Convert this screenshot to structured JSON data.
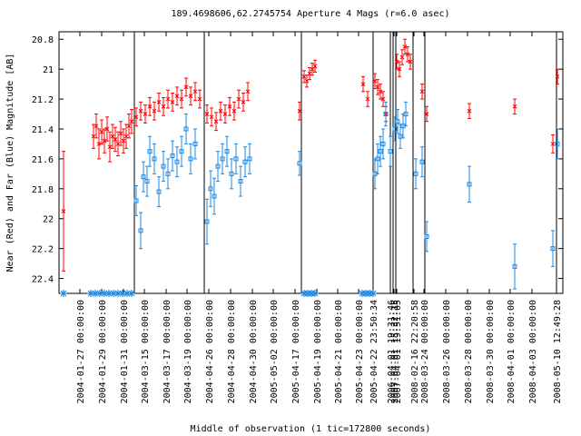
{
  "chart_data": {
    "type": "scatter",
    "title": "189.4698606,62.2745754   Aperture 4 Mags (r=6.0 asec)",
    "y_label": "Near (Red) and Far (Blue) Magnitude [AB]",
    "x_label": "Middle of observation (1 tic=172800 seconds)",
    "ylim": [
      22.5,
      20.75
    ],
    "yticks": [
      20.8,
      21,
      21.2,
      21.4,
      21.6,
      21.8,
      22,
      22.2,
      22.4
    ],
    "xlim": [
      0,
      555
    ],
    "xticks": [
      {
        "value": 23,
        "label": "2004-01-27 00:00:00"
      },
      {
        "value": 47,
        "label": "2004-01-29 00:00:00"
      },
      {
        "value": 71,
        "label": "2004-01-31 00:00:00"
      },
      {
        "value": 94,
        "label": "2004-03-15 00:00:00"
      },
      {
        "value": 118,
        "label": "2004-03-17 00:00:00"
      },
      {
        "value": 141,
        "label": "2004-03-19 00:00:00"
      },
      {
        "value": 165,
        "label": "2004-04-26 00:00:00"
      },
      {
        "value": 189,
        "label": "2004-04-28 00:00:00"
      },
      {
        "value": 213,
        "label": "2004-04-30 00:00:00"
      },
      {
        "value": 236,
        "label": "2005-05-02 00:00:00"
      },
      {
        "value": 260,
        "label": "2005-04-17 00:00:00"
      },
      {
        "value": 284,
        "label": "2005-04-19 00:00:00"
      },
      {
        "value": 307,
        "label": "2005-04-21 00:00:00"
      },
      {
        "value": 330,
        "label": "2005-04-23 00:00:00"
      },
      {
        "value": 346,
        "label": "2005-04-22 23:50:34"
      },
      {
        "value": 365,
        "label": "2006-04-01 19:31:46"
      },
      {
        "value": 369,
        "label": "2007-04-01 15:32:15"
      },
      {
        "value": 372,
        "label": "2007-04-01 19:51:05"
      },
      {
        "value": 391,
        "label": "2008-02-16 22:20:58"
      },
      {
        "value": 402,
        "label": "2008-03-24 00:00:00"
      },
      {
        "value": 426,
        "label": "2008-03-26 00:00:00"
      },
      {
        "value": 450,
        "label": "2008-03-28 00:00:00"
      },
      {
        "value": 474,
        "label": "2008-03-30 00:00:00"
      },
      {
        "value": 497,
        "label": "2008-04-01 00:00:00"
      },
      {
        "value": 521,
        "label": "2008-04-03 00:00:00"
      },
      {
        "value": 548,
        "label": "2008-05-10 12:49:28"
      }
    ],
    "breaks": [
      83,
      160,
      267,
      346,
      365,
      368,
      371,
      390,
      403,
      548
    ],
    "series": [
      {
        "color": "#ff0000",
        "marker": "cross",
        "x": [
          5,
          38,
          41,
          44,
          47,
          50,
          53,
          56,
          59,
          62,
          65,
          68,
          71,
          74,
          77,
          80,
          85,
          90,
          95,
          100,
          105,
          110,
          115,
          120,
          125,
          130,
          135,
          140,
          145,
          150,
          155,
          163,
          168,
          173,
          178,
          183,
          188,
          193,
          198,
          203,
          208,
          265,
          270,
          273,
          276,
          279,
          282,
          335,
          340,
          348,
          351,
          354,
          357,
          360,
          372,
          375,
          378,
          381,
          384,
          387,
          400,
          405,
          452,
          502,
          544,
          549
        ],
        "values": [
          21.95,
          21.45,
          21.38,
          21.5,
          21.42,
          21.48,
          21.4,
          21.52,
          21.45,
          21.47,
          21.5,
          21.43,
          21.48,
          21.45,
          21.38,
          21.35,
          21.32,
          21.28,
          21.3,
          21.25,
          21.28,
          21.22,
          21.25,
          21.2,
          21.22,
          21.18,
          21.2,
          21.12,
          21.18,
          21.15,
          21.2,
          21.3,
          21.32,
          21.35,
          21.28,
          21.3,
          21.25,
          21.28,
          21.2,
          21.22,
          21.15,
          21.28,
          21.05,
          21.08,
          21.03,
          21.0,
          20.98,
          21.1,
          21.2,
          21.08,
          21.12,
          21.15,
          21.2,
          21.3,
          20.95,
          21.0,
          20.92,
          20.85,
          20.9,
          20.95,
          21.15,
          21.3,
          21.28,
          21.25,
          21.5,
          21.05
        ],
        "errors": [
          0.4,
          0.08,
          0.08,
          0.1,
          0.08,
          0.08,
          0.08,
          0.1,
          0.08,
          0.08,
          0.08,
          0.08,
          0.08,
          0.08,
          0.08,
          0.08,
          0.06,
          0.06,
          0.06,
          0.06,
          0.06,
          0.06,
          0.06,
          0.06,
          0.06,
          0.06,
          0.06,
          0.06,
          0.06,
          0.06,
          0.06,
          0.06,
          0.06,
          0.06,
          0.06,
          0.06,
          0.06,
          0.06,
          0.06,
          0.06,
          0.06,
          0.06,
          0.04,
          0.04,
          0.04,
          0.04,
          0.04,
          0.05,
          0.05,
          0.05,
          0.05,
          0.05,
          0.05,
          0.05,
          0.05,
          0.05,
          0.05,
          0.05,
          0.05,
          0.05,
          0.05,
          0.05,
          0.05,
          0.05,
          0.06,
          0.05
        ]
      },
      {
        "color": "#1e88e5",
        "marker": "square",
        "x": [
          85,
          90,
          93,
          97,
          100,
          105,
          110,
          115,
          120,
          125,
          130,
          135,
          140,
          145,
          150,
          163,
          167,
          171,
          175,
          180,
          185,
          190,
          195,
          200,
          205,
          210,
          265,
          348,
          351,
          354,
          357,
          360,
          365,
          370,
          373,
          376,
          379,
          382,
          393,
          400,
          405,
          452,
          502,
          544,
          549
        ],
        "values": [
          21.88,
          22.08,
          21.72,
          21.75,
          21.55,
          21.6,
          21.82,
          21.65,
          21.7,
          21.58,
          21.62,
          21.55,
          21.4,
          21.6,
          21.5,
          22.02,
          21.8,
          21.85,
          21.65,
          21.6,
          21.55,
          21.7,
          21.6,
          21.75,
          21.62,
          21.6,
          21.63,
          21.7,
          21.6,
          21.55,
          21.5,
          21.3,
          21.55,
          21.4,
          21.35,
          21.45,
          21.38,
          21.3,
          21.7,
          21.62,
          22.12,
          21.77,
          22.32,
          22.2,
          21.5
        ],
        "errors": [
          0.1,
          0.12,
          0.1,
          0.1,
          0.1,
          0.1,
          0.1,
          0.1,
          0.1,
          0.1,
          0.1,
          0.1,
          0.1,
          0.1,
          0.1,
          0.15,
          0.12,
          0.12,
          0.1,
          0.1,
          0.1,
          0.1,
          0.1,
          0.1,
          0.1,
          0.1,
          0.08,
          0.1,
          0.1,
          0.1,
          0.1,
          0.08,
          0.1,
          0.08,
          0.08,
          0.08,
          0.08,
          0.08,
          0.1,
          0.1,
          0.1,
          0.12,
          0.15,
          0.12,
          0.1
        ]
      }
    ],
    "lower_markers": {
      "color": "#1e88e5",
      "x": [
        5,
        35,
        40,
        45,
        50,
        55,
        60,
        65,
        70,
        75,
        80,
        270,
        274,
        278,
        282,
        334,
        338,
        342,
        346
      ]
    }
  }
}
